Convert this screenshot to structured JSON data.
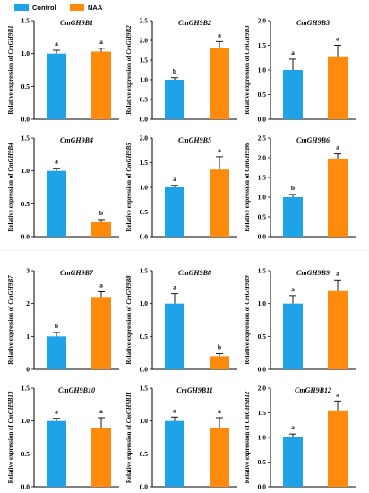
{
  "legend": {
    "control_label": "Control",
    "naa_label": "NAA",
    "control_color": "#1ea2e8",
    "naa_color": "#ff8a0b"
  },
  "ylabel_prefix": "Relative expression of ",
  "chart_data": [
    {
      "type": "bar",
      "title": "CmGH9B1",
      "categories": [
        "Control",
        "NAA"
      ],
      "values": [
        1.0,
        1.03
      ],
      "errors": [
        0.05,
        0.05
      ],
      "letters": [
        "a",
        "a"
      ],
      "ylim": [
        0,
        1.5
      ],
      "yticks": [
        "0.0",
        "0.5",
        "1.0",
        "1.5"
      ],
      "ylabel": "Relative expression of CmGH9B1"
    },
    {
      "type": "bar",
      "title": "CmGH9B2",
      "categories": [
        "Control",
        "NAA"
      ],
      "values": [
        1.0,
        1.8
      ],
      "errors": [
        0.05,
        0.17
      ],
      "letters": [
        "b",
        "a"
      ],
      "ylim": [
        0,
        2.5
      ],
      "yticks": [
        "0.0",
        "0.5",
        "1.0",
        "1.5",
        "2.0",
        "2.5"
      ],
      "ylabel": "Relative expression of CmGH9B2"
    },
    {
      "type": "bar",
      "title": "CmGH9B3",
      "categories": [
        "Control",
        "NAA"
      ],
      "values": [
        1.0,
        1.26
      ],
      "errors": [
        0.22,
        0.24
      ],
      "letters": [
        "a",
        "a"
      ],
      "ylim": [
        0,
        2.0
      ],
      "yticks": [
        "0.0",
        "0.5",
        "1.0",
        "1.5",
        "2.0"
      ],
      "ylabel": "Relative expression of CmGH9B3"
    },
    {
      "type": "bar",
      "title": "CmGH9B4",
      "categories": [
        "Control",
        "NAA"
      ],
      "values": [
        1.0,
        0.22
      ],
      "errors": [
        0.04,
        0.04
      ],
      "letters": [
        "a",
        "b"
      ],
      "ylim": [
        0,
        1.5
      ],
      "yticks": [
        "0.0",
        "0.5",
        "1.0",
        "1.5"
      ],
      "ylabel": "Relative expression of CmGH9B4"
    },
    {
      "type": "bar",
      "title": "CmGH9B5",
      "categories": [
        "Control",
        "NAA"
      ],
      "values": [
        1.0,
        1.36
      ],
      "errors": [
        0.04,
        0.26
      ],
      "letters": [
        "a",
        "a"
      ],
      "ylim": [
        0,
        2.0
      ],
      "yticks": [
        "0.0",
        "0.5",
        "1.0",
        "1.5",
        "2.0"
      ],
      "ylabel": "Relative expression of CmGH9B5"
    },
    {
      "type": "bar",
      "title": "CmGH9B6",
      "categories": [
        "Control",
        "NAA"
      ],
      "values": [
        1.0,
        1.98
      ],
      "errors": [
        0.07,
        0.12
      ],
      "letters": [
        "b",
        "a"
      ],
      "ylim": [
        0,
        2.5
      ],
      "yticks": [
        "0.0",
        "0.5",
        "1.0",
        "1.5",
        "2.0",
        "2.5"
      ],
      "ylabel": "Relative expression of CmGH9B6"
    },
    {
      "type": "bar",
      "title": "CmGH9B7",
      "categories": [
        "Control",
        "NAA"
      ],
      "values": [
        1.0,
        2.2
      ],
      "errors": [
        0.12,
        0.16
      ],
      "letters": [
        "b",
        "a"
      ],
      "ylim": [
        0,
        3
      ],
      "yticks": [
        "0",
        "1",
        "2",
        "3"
      ],
      "ylabel": "Relative expression of CmGH9B7"
    },
    {
      "type": "bar",
      "title": "CmGH9B8",
      "categories": [
        "Control",
        "NAA"
      ],
      "values": [
        1.0,
        0.2
      ],
      "errors": [
        0.15,
        0.04
      ],
      "letters": [
        "a",
        "b"
      ],
      "ylim": [
        0,
        1.5
      ],
      "yticks": [
        "0.0",
        "0.5",
        "1.0",
        "1.5"
      ],
      "ylabel": "Relative expression of CmGH9B8"
    },
    {
      "type": "bar",
      "title": "CmGH9B9",
      "categories": [
        "Control",
        "NAA"
      ],
      "values": [
        1.0,
        1.19
      ],
      "errors": [
        0.12,
        0.17
      ],
      "letters": [
        "a",
        "a"
      ],
      "ylim": [
        0,
        1.5
      ],
      "yticks": [
        "0.0",
        "0.5",
        "1.0",
        "1.5"
      ],
      "ylabel": "Relative expression of CmGH9B9"
    },
    {
      "type": "bar",
      "title": "CmGH9B10",
      "categories": [
        "Control",
        "NAA"
      ],
      "values": [
        1.0,
        0.9
      ],
      "errors": [
        0.04,
        0.15
      ],
      "letters": [
        "a",
        "a"
      ],
      "ylim": [
        0,
        1.5
      ],
      "yticks": [
        "0.0",
        "0.5",
        "1.0",
        "1.5"
      ],
      "ylabel": "Relative expression of CmGH9B10"
    },
    {
      "type": "bar",
      "title": "CmGH9B11",
      "categories": [
        "Control",
        "NAA"
      ],
      "values": [
        1.0,
        0.9
      ],
      "errors": [
        0.06,
        0.15
      ],
      "letters": [
        "a",
        "a"
      ],
      "ylim": [
        0,
        1.5
      ],
      "yticks": [
        "0.0",
        "0.5",
        "1.0",
        "1.5"
      ],
      "ylabel": "Relative expression of CmGH9B11"
    },
    {
      "type": "bar",
      "title": "CmGH9B12",
      "categories": [
        "Control",
        "NAA"
      ],
      "values": [
        1.0,
        1.55
      ],
      "errors": [
        0.07,
        0.19
      ],
      "letters": [
        "a",
        "a"
      ],
      "ylim": [
        0,
        2.0
      ],
      "yticks": [
        "0.0",
        "0.5",
        "1.0",
        "1.5",
        "2.0"
      ],
      "ylabel": "Relative expression of CmGH9B12"
    }
  ]
}
